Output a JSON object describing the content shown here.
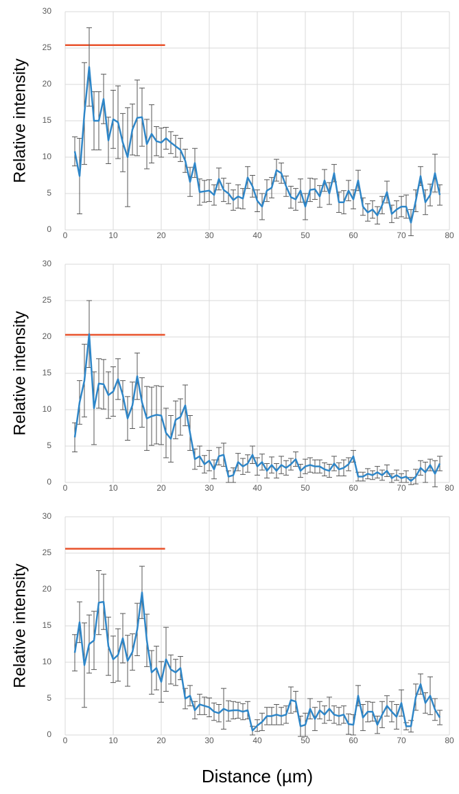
{
  "chart_data": [
    {
      "type": "line",
      "ylabel": "Relative intensity",
      "xlim": [
        0,
        80
      ],
      "ylim": [
        0,
        30
      ],
      "xticks": [
        0,
        10,
        20,
        30,
        40,
        50,
        60,
        70,
        80
      ],
      "yticks": [
        0,
        5,
        10,
        15,
        20,
        25,
        30
      ],
      "grid": true,
      "color": "#2e86c8",
      "error_color": "#555555",
      "x": [
        2,
        3,
        4,
        5,
        6,
        7,
        8,
        9,
        10,
        11,
        12,
        13,
        14,
        15,
        16,
        17,
        18,
        19,
        20,
        21,
        22,
        23,
        24,
        25,
        26,
        27,
        28,
        29,
        30,
        31,
        32,
        33,
        34,
        35,
        36,
        37,
        38,
        39,
        40,
        41,
        42,
        43,
        44,
        45,
        46,
        47,
        48,
        49,
        50,
        51,
        52,
        53,
        54,
        55,
        56,
        57,
        58,
        59,
        60,
        61,
        62,
        63,
        64,
        65,
        66,
        67,
        68,
        69,
        70,
        71,
        72,
        73,
        74,
        75,
        76,
        77,
        78
      ],
      "values": [
        10.8,
        7.4,
        16,
        22.4,
        15,
        15,
        18,
        12.3,
        15.2,
        14.8,
        12,
        10,
        13.8,
        15.4,
        15.5,
        11.8,
        13.2,
        12.2,
        12,
        12.6,
        12,
        11.5,
        11,
        9.5,
        6.6,
        9.2,
        5.2,
        5.3,
        5.4,
        4.8,
        7,
        5.5,
        5,
        4.1,
        4.6,
        4.3,
        7.2,
        6,
        4,
        3.2,
        5.4,
        5.8,
        8.2,
        7.8,
        6,
        4.5,
        4.2,
        5.4,
        3.2,
        5.5,
        5.6,
        4.6,
        6.8,
        5,
        7.8,
        3.8,
        3.8,
        5.4,
        4.2,
        6.8,
        3.2,
        2.4,
        2.8,
        2,
        3.4,
        5.2,
        2.2,
        2.8,
        3.2,
        3.2,
        1,
        4,
        7.4,
        3.8,
        4.8,
        7.8,
        4.8
      ],
      "errors": [
        2,
        5.2,
        7,
        5.4,
        4,
        4,
        3.4,
        3.2,
        4,
        5,
        4,
        6.8,
        3.5,
        5.2,
        4,
        3.4,
        4,
        2,
        2,
        1.5,
        1.5,
        1.5,
        1.6,
        1.6,
        2,
        2,
        1.8,
        1.5,
        1.5,
        1.4,
        1.5,
        1.6,
        1.4,
        1.4,
        1.6,
        1.4,
        1.5,
        1.5,
        1.5,
        1.8,
        1.5,
        1.4,
        1.5,
        1.4,
        1.4,
        1.5,
        1.5,
        1.6,
        1.8,
        1.6,
        1.4,
        1.5,
        1.5,
        1.5,
        1.2,
        1.4,
        1.6,
        1.4,
        1.3,
        1.4,
        1.2,
        1.2,
        1.2,
        1.2,
        1.2,
        1.5,
        1.2,
        1.2,
        1.4,
        1.6,
        1.8,
        1.5,
        1.3,
        1.7,
        1.5,
        2.6,
        1.4
      ],
      "reference_line": {
        "y": 25.4,
        "x": [
          0,
          20.8
        ],
        "color": "#e8512a"
      }
    },
    {
      "type": "line",
      "ylabel": "Relative intensity",
      "xlim": [
        0,
        80
      ],
      "ylim": [
        0,
        30
      ],
      "xticks": [
        0,
        10,
        20,
        30,
        40,
        50,
        60,
        70,
        80
      ],
      "yticks": [
        0,
        5,
        10,
        15,
        20,
        25,
        30
      ],
      "grid": true,
      "color": "#2e86c8",
      "error_color": "#555555",
      "x": [
        2,
        3,
        4,
        5,
        6,
        7,
        8,
        9,
        10,
        11,
        12,
        13,
        14,
        15,
        16,
        17,
        18,
        19,
        20,
        21,
        22,
        23,
        24,
        25,
        26,
        27,
        28,
        29,
        30,
        31,
        32,
        33,
        34,
        35,
        36,
        37,
        38,
        39,
        40,
        41,
        42,
        43,
        44,
        45,
        46,
        47,
        48,
        49,
        50,
        51,
        52,
        53,
        54,
        55,
        56,
        57,
        58,
        59,
        60,
        61,
        62,
        63,
        64,
        65,
        66,
        67,
        68,
        69,
        70,
        71,
        72,
        73,
        74,
        75,
        76,
        77,
        78
      ],
      "values": [
        6.2,
        11,
        14,
        20.4,
        10.2,
        13.6,
        13.5,
        12,
        12.5,
        14.2,
        12,
        8.8,
        10.6,
        14.6,
        11,
        8.8,
        9.1,
        9.3,
        9.2,
        6.8,
        6,
        8.6,
        9,
        10.6,
        6.8,
        3.2,
        3.6,
        2.5,
        3,
        1.8,
        3.6,
        3.8,
        0.8,
        1,
        2.8,
        2.2,
        2.6,
        3.8,
        2.2,
        2.8,
        1.6,
        2.4,
        1.6,
        2.4,
        2,
        2.5,
        3.2,
        1.6,
        2.2,
        2.4,
        2.2,
        2.2,
        1.8,
        1.6,
        2.6,
        1.8,
        2,
        2.5,
        3.6,
        0.8,
        0.8,
        1.2,
        1,
        1.4,
        1,
        1.6,
        0.6,
        1,
        0.6,
        0.8,
        0.2,
        0.8,
        2,
        1.4,
        2.4,
        1.2,
        2.6
      ],
      "errors": [
        2,
        3,
        5,
        4.6,
        5,
        3.4,
        3.4,
        3.2,
        3.4,
        2.8,
        2,
        3,
        3.2,
        3.2,
        3.4,
        4.4,
        4,
        4,
        4,
        3.4,
        3.2,
        2.6,
        2.5,
        2.8,
        2.4,
        1.4,
        1.4,
        1.2,
        1.4,
        1.3,
        1.2,
        1.6,
        0.8,
        1,
        1.2,
        1.1,
        1.2,
        1.2,
        1.2,
        1.1,
        1,
        1.1,
        1,
        1.2,
        1,
        0.8,
        1,
        0.9,
        1,
        1,
        0.9,
        0.9,
        0.9,
        0.9,
        1,
        0.9,
        1.1,
        0.9,
        0.8,
        0.6,
        0.6,
        0.7,
        0.6,
        0.8,
        0.7,
        0.8,
        0.6,
        0.7,
        0.6,
        0.8,
        0.5,
        1,
        1,
        1.4,
        0.8,
        1.8,
        1
      ],
      "reference_line": {
        "y": 20.3,
        "x": [
          0,
          20.8
        ],
        "color": "#e8512a"
      }
    },
    {
      "type": "line",
      "ylabel": "Relative intensity",
      "xlabel": "Distance (µm)",
      "xlim": [
        0,
        80
      ],
      "ylim": [
        0,
        30
      ],
      "xticks": [
        0,
        10,
        20,
        30,
        40,
        50,
        60,
        70,
        80
      ],
      "yticks": [
        0,
        5,
        10,
        15,
        20,
        25,
        30
      ],
      "grid": true,
      "color": "#2e86c8",
      "error_color": "#555555",
      "x": [
        2,
        3,
        4,
        5,
        6,
        7,
        8,
        9,
        10,
        11,
        12,
        13,
        14,
        15,
        16,
        17,
        18,
        19,
        20,
        21,
        22,
        23,
        24,
        25,
        26,
        27,
        28,
        29,
        30,
        31,
        32,
        33,
        34,
        35,
        36,
        37,
        38,
        39,
        40,
        41,
        42,
        43,
        44,
        45,
        46,
        47,
        48,
        49,
        50,
        51,
        52,
        53,
        54,
        55,
        56,
        57,
        58,
        59,
        60,
        61,
        62,
        63,
        64,
        65,
        66,
        67,
        68,
        69,
        70,
        71,
        72,
        73,
        74,
        75,
        76,
        77,
        78
      ],
      "values": [
        11.3,
        15.5,
        9.6,
        12.5,
        13,
        18.2,
        18.3,
        12.2,
        10.4,
        11,
        13.3,
        10.2,
        11.4,
        14.5,
        19.6,
        13,
        8.6,
        9.2,
        7.3,
        10.4,
        9,
        8.6,
        9.2,
        5,
        5.4,
        3.4,
        4.2,
        4,
        3.8,
        3.2,
        3,
        3.6,
        3.3,
        3.4,
        3.4,
        3.2,
        3.4,
        0.6,
        1.3,
        1.8,
        2.6,
        2.6,
        2.8,
        2.6,
        2.8,
        4.8,
        4.6,
        1.2,
        1.4,
        3.6,
        2.2,
        3.4,
        2.8,
        3.6,
        2.8,
        2.6,
        2.8,
        1.5,
        1.4,
        5.4,
        2.4,
        3.2,
        3.2,
        1.4,
        2.8,
        4,
        3.2,
        2.5,
        4.4,
        1.2,
        1.2,
        5.2,
        7,
        4.4,
        5.4,
        3.5,
        2.4
      ],
      "errors": [
        2.5,
        2.8,
        5.8,
        4,
        4,
        4.4,
        3.8,
        4,
        3.2,
        3.6,
        3.4,
        3.5,
        2.5,
        3.6,
        3.6,
        3.6,
        3,
        3,
        2.8,
        4.4,
        2,
        1.8,
        1.6,
        1.4,
        1.4,
        1.2,
        1.4,
        1.2,
        1.3,
        1.2,
        1.2,
        2.8,
        1.4,
        1.2,
        1.1,
        1.1,
        1.2,
        0.6,
        0.8,
        1.2,
        1.2,
        1.2,
        1.4,
        1.2,
        1.2,
        1.8,
        1.4,
        1.4,
        1.6,
        1.4,
        1.6,
        1.2,
        1.2,
        1.6,
        1.2,
        1.2,
        1.2,
        1.4,
        1.4,
        1.4,
        1.8,
        1.4,
        1.3,
        1.2,
        1.8,
        1.4,
        1.4,
        1.7,
        1.8,
        0.5,
        0.8,
        1.8,
        1.4,
        1.4,
        2.6,
        1.5,
        1
      ],
      "reference_line": {
        "y": 25.6,
        "x": [
          0,
          20.8
        ],
        "color": "#e8512a"
      }
    }
  ]
}
